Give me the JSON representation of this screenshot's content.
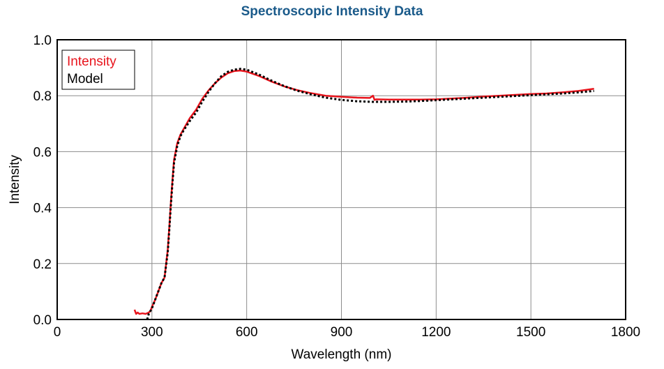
{
  "chart_data": {
    "type": "line",
    "title": "Spectroscopic Intensity Data",
    "xlabel": "Wavelength (nm)",
    "ylabel": "Intensity",
    "xlim": [
      0,
      1800
    ],
    "ylim": [
      0.0,
      1.0
    ],
    "xticks": [
      "0",
      "300",
      "600",
      "900",
      "1200",
      "1500",
      "1800"
    ],
    "yticks": [
      "0.0",
      "0.2",
      "0.4",
      "0.6",
      "0.8",
      "1.0"
    ],
    "grid": true,
    "legend": {
      "position": "top-left"
    },
    "series": [
      {
        "name": "Intensity",
        "color": "#e8141c",
        "style": "solid",
        "x": [
          245,
          250,
          255,
          260,
          270,
          280,
          290,
          295,
          300,
          310,
          320,
          330,
          340,
          350,
          355,
          360,
          365,
          370,
          380,
          390,
          400,
          420,
          440,
          460,
          480,
          500,
          520,
          540,
          560,
          580,
          600,
          640,
          680,
          720,
          760,
          800,
          850,
          900,
          950,
          990,
          1000,
          1005,
          1010,
          1050,
          1100,
          1150,
          1200,
          1250,
          1300,
          1350,
          1400,
          1450,
          1500,
          1550,
          1600,
          1650,
          1700
        ],
        "y": [
          0.035,
          0.02,
          0.025,
          0.02,
          0.022,
          0.02,
          0.025,
          0.03,
          0.045,
          0.07,
          0.1,
          0.13,
          0.15,
          0.25,
          0.33,
          0.42,
          0.5,
          0.57,
          0.63,
          0.66,
          0.68,
          0.72,
          0.75,
          0.79,
          0.82,
          0.845,
          0.865,
          0.88,
          0.888,
          0.89,
          0.886,
          0.87,
          0.85,
          0.833,
          0.82,
          0.81,
          0.8,
          0.796,
          0.793,
          0.792,
          0.8,
          0.785,
          0.787,
          0.786,
          0.786,
          0.786,
          0.787,
          0.79,
          0.793,
          0.797,
          0.8,
          0.803,
          0.806,
          0.808,
          0.812,
          0.817,
          0.825
        ]
      },
      {
        "name": "Model",
        "color": "#000000",
        "style": "dotted",
        "x": [
          285,
          290,
          300,
          310,
          320,
          330,
          340,
          350,
          355,
          360,
          365,
          370,
          380,
          390,
          400,
          420,
          440,
          460,
          480,
          500,
          520,
          540,
          560,
          580,
          600,
          640,
          680,
          720,
          760,
          800,
          850,
          900,
          950,
          1000,
          1050,
          1100,
          1150,
          1200,
          1250,
          1300,
          1350,
          1400,
          1450,
          1500,
          1550,
          1600,
          1650,
          1700
        ],
        "y": [
          0.0,
          0.02,
          0.04,
          0.07,
          0.1,
          0.13,
          0.15,
          0.24,
          0.32,
          0.41,
          0.49,
          0.56,
          0.62,
          0.655,
          0.675,
          0.71,
          0.74,
          0.78,
          0.815,
          0.845,
          0.87,
          0.885,
          0.893,
          0.896,
          0.893,
          0.875,
          0.853,
          0.834,
          0.818,
          0.806,
          0.793,
          0.785,
          0.78,
          0.778,
          0.778,
          0.779,
          0.781,
          0.784,
          0.787,
          0.79,
          0.793,
          0.796,
          0.799,
          0.802,
          0.805,
          0.808,
          0.812,
          0.817
        ]
      }
    ]
  }
}
